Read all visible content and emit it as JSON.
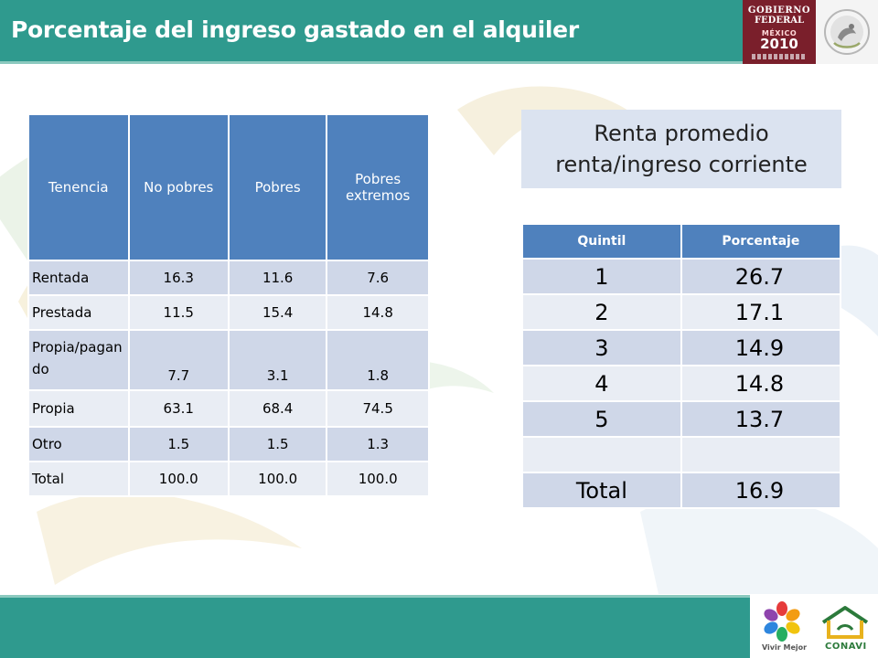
{
  "header": {
    "title": "Porcentaje del ingreso gastado en  el alquiler"
  },
  "gov_logo": {
    "line1": "GOBIERNO",
    "line2": "FEDERAL",
    "mx": "MÉXICO",
    "year": "2010"
  },
  "left_table": {
    "columns": [
      "Tenencia",
      "No pobres",
      "Pobres",
      "Pobres extremos"
    ],
    "rows": [
      {
        "label": "Rentada",
        "values": [
          "16.3",
          "11.6",
          "7.6"
        ]
      },
      {
        "label": "Prestada",
        "values": [
          "11.5",
          "15.4",
          "14.8"
        ]
      },
      {
        "label": "Propia/pagando",
        "values": [
          "7.7",
          "3.1",
          "1.8"
        ]
      },
      {
        "label": "Propia",
        "values": [
          "63.1",
          "68.4",
          "74.5"
        ]
      },
      {
        "label": "Otro",
        "values": [
          "1.5",
          "1.5",
          "1.3"
        ]
      },
      {
        "label": "Total",
        "values": [
          "100.0",
          "100.0",
          "100.0"
        ]
      }
    ]
  },
  "renta_box": {
    "line1": "Renta promedio",
    "line2": "renta/ingreso corriente"
  },
  "right_table": {
    "columns": [
      "Quintil",
      "Porcentaje"
    ],
    "rows": [
      {
        "q": "1",
        "p": "26.7"
      },
      {
        "q": "2",
        "p": "17.1"
      },
      {
        "q": "3",
        "p": "14.9"
      },
      {
        "q": "4",
        "p": "14.8"
      },
      {
        "q": "5",
        "p": "13.7"
      },
      {
        "q": "",
        "p": ""
      },
      {
        "q": "Total",
        "p": "16.9"
      }
    ]
  },
  "footer": {
    "vivir_label": "Vivir Mejor",
    "conavi_label": "CONAVI"
  },
  "colors": {
    "header_teal": "#2f9a8e",
    "table_header_blue": "#4f81bd",
    "row_dark": "#cfd7e8",
    "row_light": "#e9edf4",
    "gov_maroon": "#7a1f2b"
  }
}
